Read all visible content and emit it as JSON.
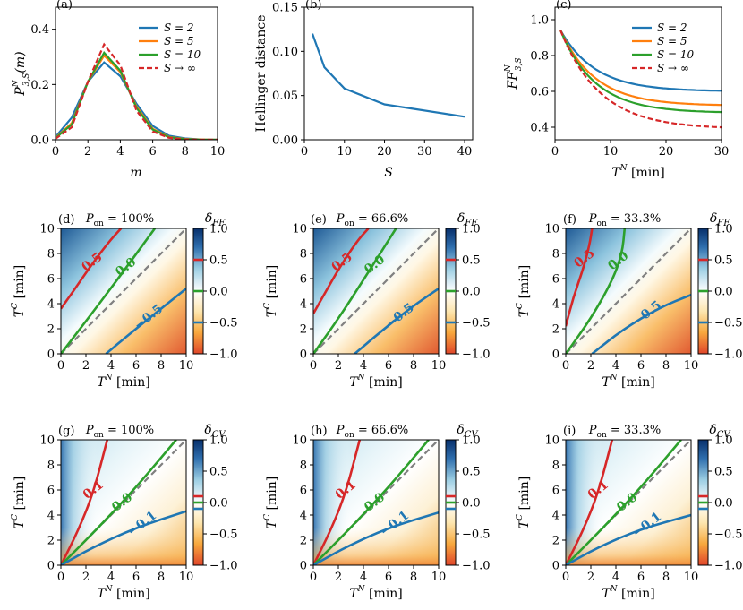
{
  "chart_data": [
    {
      "type": "line",
      "panel": "(a)",
      "ylabel": "P^N_{3,S}(m)",
      "xlabel": "m",
      "xlim": [
        0,
        10
      ],
      "ylim": [
        0,
        0.48
      ],
      "xticks": [
        0,
        2,
        4,
        6,
        8,
        10
      ],
      "yticks": [
        0.0,
        0.2,
        0.4
      ],
      "x": [
        0,
        1,
        2,
        3,
        4,
        5,
        6,
        7,
        8,
        9,
        10
      ],
      "legend_position": "top-right",
      "series": [
        {
          "name": "S = 2",
          "color": "#1f77b4",
          "dash": "solid",
          "values": [
            0.01,
            0.08,
            0.21,
            0.28,
            0.23,
            0.13,
            0.05,
            0.015,
            0.005,
            0.001,
            0.0
          ]
        },
        {
          "name": "S = 5",
          "color": "#ff7f0e",
          "dash": "solid",
          "values": [
            0.007,
            0.06,
            0.21,
            0.305,
            0.245,
            0.12,
            0.04,
            0.01,
            0.003,
            0.001,
            0.0
          ]
        },
        {
          "name": "S = 10",
          "color": "#2ca02c",
          "dash": "solid",
          "values": [
            0.006,
            0.055,
            0.21,
            0.315,
            0.25,
            0.115,
            0.037,
            0.009,
            0.002,
            0.0,
            0.0
          ]
        },
        {
          "name": "S → ∞",
          "color": "#d62728",
          "dash": "dashed",
          "values": [
            0.004,
            0.045,
            0.21,
            0.345,
            0.27,
            0.105,
            0.03,
            0.007,
            0.001,
            0.0,
            0.0
          ]
        }
      ]
    },
    {
      "type": "line",
      "panel": "(b)",
      "ylabel": "Hellinger distance",
      "xlabel": "S",
      "xlim": [
        0,
        42
      ],
      "ylim": [
        0,
        0.15
      ],
      "xticks": [
        0,
        10,
        20,
        30,
        40
      ],
      "yticks": [
        0.0,
        0.05,
        0.1,
        0.15
      ],
      "series": [
        {
          "name": "Hellinger",
          "color": "#1f77b4",
          "dash": "solid",
          "x": [
            2,
            5,
            10,
            20,
            40
          ],
          "values": [
            0.12,
            0.082,
            0.058,
            0.04,
            0.026
          ]
        }
      ]
    },
    {
      "type": "line",
      "panel": "(c)",
      "ylabel": "FF^N_{3,S}",
      "xlabel": "T^N [min]",
      "xlim": [
        0,
        30
      ],
      "ylim": [
        0.33,
        1.07
      ],
      "xticks": [
        0,
        10,
        20,
        30
      ],
      "yticks": [
        0.4,
        0.6,
        0.8,
        1.0
      ],
      "legend_position": "top-right",
      "series": [
        {
          "name": "S = 2",
          "color": "#1f77b4",
          "dash": "solid",
          "curve": {
            "start": 0.94,
            "end": 0.6,
            "k": 0.16
          }
        },
        {
          "name": "S = 5",
          "color": "#ff7f0e",
          "dash": "solid",
          "curve": {
            "start": 0.94,
            "end": 0.52,
            "k": 0.16
          }
        },
        {
          "name": "S = 10",
          "color": "#2ca02c",
          "dash": "solid",
          "curve": {
            "start": 0.94,
            "end": 0.48,
            "k": 0.16
          }
        },
        {
          "name": "S → ∞",
          "color": "#d62728",
          "dash": "dashed",
          "curve": {
            "start": 0.94,
            "end": 0.39,
            "k": 0.14
          }
        }
      ]
    },
    {
      "type": "heatmap",
      "panel": "(d)",
      "title": "P_on = 100%",
      "cbar_label": "δ_FF",
      "xlabel": "T^N [min]",
      "ylabel": "T^C [min]",
      "xlim": [
        0,
        10
      ],
      "ylim": [
        0,
        10
      ],
      "cbar_range": [
        -1.0,
        1.0
      ],
      "cbar_ticks": [
        "1.0",
        "0.5",
        "0.0",
        "−0.5",
        "−1.0"
      ],
      "contours": [
        {
          "label": "0.5",
          "color": "#d62728",
          "points": [
            [
              0,
              3.6
            ],
            [
              1.0,
              5.0
            ],
            [
              2.3,
              6.9
            ],
            [
              3.8,
              8.9
            ],
            [
              4.8,
              10
            ]
          ],
          "label_at": [
            2.5,
            7.3
          ]
        },
        {
          "label": "0.0",
          "color": "#2ca02c",
          "points": [
            [
              0,
              0
            ],
            [
              2.0,
              2.6
            ],
            [
              4.5,
              5.9
            ],
            [
              7.5,
              10
            ]
          ],
          "label_at": [
            5.2,
            6.9
          ]
        },
        {
          "label": "−0.5",
          "color": "#1f77b4",
          "points": [
            [
              3.6,
              0
            ],
            [
              5.5,
              1.6
            ],
            [
              8.0,
              3.6
            ],
            [
              10,
              5.2
            ]
          ],
          "label_at": [
            7.0,
            2.9
          ]
        }
      ]
    },
    {
      "type": "heatmap",
      "panel": "(e)",
      "title": "P_on = 66.6%",
      "cbar_label": "δ_FF",
      "xlabel": "T^N [min]",
      "ylabel": "T^C [min]",
      "xlim": [
        0,
        10
      ],
      "ylim": [
        0,
        10
      ],
      "cbar_range": [
        -1.0,
        1.0
      ],
      "cbar_ticks": [
        "1.0",
        "0.5",
        "0.0",
        "−0.5",
        "−1.0"
      ],
      "contours": [
        {
          "label": "0.5",
          "color": "#d62728",
          "points": [
            [
              0,
              3.2
            ],
            [
              0.9,
              4.8
            ],
            [
              2.1,
              6.9
            ],
            [
              3.5,
              9.0
            ],
            [
              4.4,
              10
            ]
          ],
          "label_at": [
            2.3,
            7.3
          ]
        },
        {
          "label": "0.0",
          "color": "#2ca02c",
          "points": [
            [
              0,
              0
            ],
            [
              2.0,
              2.8
            ],
            [
              4.2,
              6.2
            ],
            [
              6.6,
              10
            ]
          ],
          "label_at": [
            4.9,
            7.1
          ]
        },
        {
          "label": "−0.5",
          "color": "#1f77b4",
          "points": [
            [
              3.3,
              0
            ],
            [
              5.3,
              1.7
            ],
            [
              7.8,
              3.7
            ],
            [
              10,
              5.2
            ]
          ],
          "label_at": [
            6.9,
            3.0
          ]
        }
      ]
    },
    {
      "type": "heatmap",
      "panel": "(f)",
      "title": "P_on = 33.3%",
      "cbar_label": "δ_FF",
      "xlabel": "T^N [min]",
      "ylabel": "T^C [min]",
      "xlim": [
        0,
        10
      ],
      "ylim": [
        0,
        10
      ],
      "cbar_range": [
        -1.0,
        1.0
      ],
      "cbar_ticks": [
        "1.0",
        "0.5",
        "0.0",
        "−0.5",
        "−1.0"
      ],
      "contours": [
        {
          "label": "0.5",
          "color": "#d62728",
          "points": [
            [
              0,
              2.2
            ],
            [
              0.6,
              4.5
            ],
            [
              1.4,
              6.8
            ],
            [
              1.9,
              8.7
            ],
            [
              2.1,
              10
            ]
          ],
          "label_at": [
            1.5,
            7.6
          ]
        },
        {
          "label": "0.0",
          "color": "#2ca02c",
          "points": [
            [
              0,
              0
            ],
            [
              2.0,
              2.8
            ],
            [
              3.7,
              5.8
            ],
            [
              4.5,
              8.0
            ],
            [
              4.7,
              10
            ]
          ],
          "label_at": [
            4.2,
            7.4
          ]
        },
        {
          "label": "−0.5",
          "color": "#1f77b4",
          "points": [
            [
              2.1,
              0
            ],
            [
              4.5,
              1.9
            ],
            [
              7.5,
              3.7
            ],
            [
              10,
              4.7
            ]
          ],
          "label_at": [
            6.5,
            3.2
          ]
        }
      ]
    },
    {
      "type": "heatmap",
      "panel": "(g)",
      "title": "P_on = 100%",
      "cbar_label": "δ_CV",
      "xlabel": "T^N [min]",
      "ylabel": "T^C [min]",
      "xlim": [
        0,
        10
      ],
      "ylim": [
        0,
        10
      ],
      "cbar_range": [
        -1.0,
        1.0
      ],
      "cbar_ticks": [
        "1.0",
        "0.5",
        "0.0",
        "−0.5",
        "−1.0"
      ],
      "contours": [
        {
          "label": "0.1",
          "color": "#d62728",
          "points": [
            [
              0,
              0
            ],
            [
              1.4,
              2.8
            ],
            [
              2.6,
              5.8
            ],
            [
              3.7,
              10
            ]
          ],
          "label_at": [
            2.6,
            6.0
          ]
        },
        {
          "label": "0.0",
          "color": "#2ca02c",
          "points": [
            [
              0,
              0
            ],
            [
              3.0,
              3.0
            ],
            [
              6.0,
              6.2
            ],
            [
              9.2,
              10
            ]
          ],
          "label_at": [
            4.9,
            5.0
          ]
        },
        {
          "label": "−0.1",
          "color": "#1f77b4",
          "points": [
            [
              0,
              0
            ],
            [
              2.5,
              1.4
            ],
            [
              6.0,
              3.0
            ],
            [
              10,
              4.3
            ]
          ],
          "label_at": [
            6.5,
            3.3
          ]
        }
      ]
    },
    {
      "type": "heatmap",
      "panel": "(h)",
      "title": "P_on = 66.6%",
      "cbar_label": "δ_CV",
      "xlabel": "T^N [min]",
      "ylabel": "T^C [min]",
      "xlim": [
        0,
        10
      ],
      "ylim": [
        0,
        10
      ],
      "cbar_range": [
        -1.0,
        1.0
      ],
      "cbar_ticks": [
        "1.0",
        "0.5",
        "0.0",
        "−0.5",
        "−1.0"
      ],
      "contours": [
        {
          "label": "0.1",
          "color": "#d62728",
          "points": [
            [
              0,
              0
            ],
            [
              1.4,
              2.8
            ],
            [
              2.6,
              5.8
            ],
            [
              3.7,
              10
            ]
          ],
          "label_at": [
            2.6,
            6.0
          ]
        },
        {
          "label": "0.0",
          "color": "#2ca02c",
          "points": [
            [
              0,
              0
            ],
            [
              3.0,
              3.0
            ],
            [
              6.0,
              6.2
            ],
            [
              9.2,
              10
            ]
          ],
          "label_at": [
            4.9,
            5.0
          ]
        },
        {
          "label": "−0.1",
          "color": "#1f77b4",
          "points": [
            [
              0,
              0
            ],
            [
              2.5,
              1.4
            ],
            [
              6.0,
              3.0
            ],
            [
              10,
              4.2
            ]
          ],
          "label_at": [
            6.5,
            3.3
          ]
        }
      ]
    },
    {
      "type": "heatmap",
      "panel": "(i)",
      "title": "P_on = 33.3%",
      "cbar_label": "δ_CV",
      "xlabel": "T^N [min]",
      "ylabel": "T^C [min]",
      "xlim": [
        0,
        10
      ],
      "ylim": [
        0,
        10
      ],
      "cbar_range": [
        -1.0,
        1.0
      ],
      "cbar_ticks": [
        "1.0",
        "0.5",
        "0.0",
        "−0.5",
        "−1.0"
      ],
      "contours": [
        {
          "label": "0.1",
          "color": "#d62728",
          "points": [
            [
              0,
              0
            ],
            [
              1.4,
              2.8
            ],
            [
              2.6,
              5.8
            ],
            [
              3.7,
              10
            ]
          ],
          "label_at": [
            2.6,
            6.0
          ]
        },
        {
          "label": "0.0",
          "color": "#2ca02c",
          "points": [
            [
              0,
              0
            ],
            [
              3.0,
              3.0
            ],
            [
              6.0,
              6.2
            ],
            [
              9.2,
              10
            ]
          ],
          "label_at": [
            4.9,
            5.0
          ]
        },
        {
          "label": "−0.1",
          "color": "#1f77b4",
          "points": [
            [
              0,
              0
            ],
            [
              2.5,
              1.4
            ],
            [
              6.0,
              2.9
            ],
            [
              10,
              4.0
            ]
          ],
          "label_at": [
            6.5,
            3.2
          ]
        }
      ]
    }
  ]
}
